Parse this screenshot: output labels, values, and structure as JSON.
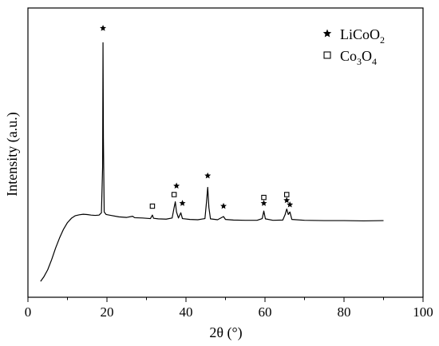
{
  "chart_data": {
    "type": "line",
    "xlabel": "2θ (°)",
    "ylabel": "Intensity (a.u.)",
    "xlim": [
      0,
      100
    ],
    "ylim": [
      0,
      100
    ],
    "x_ticks": [
      0,
      20,
      40,
      60,
      80,
      100
    ],
    "y_ticks_shown": false,
    "grid": false,
    "legend_position": "top-right",
    "legend": [
      {
        "marker": "star",
        "label_main": "LiCoO",
        "label_sub": "2",
        "label_tail": ""
      },
      {
        "marker": "square",
        "label_main": "Co",
        "label_sub": "3",
        "label_tail": "O",
        "label_sub2": "4"
      }
    ],
    "series": [
      {
        "points": [
          [
            3.2,
            5.5
          ],
          [
            4,
            7
          ],
          [
            5,
            9.5
          ],
          [
            6,
            13
          ],
          [
            7,
            17
          ],
          [
            8,
            20.5
          ],
          [
            9,
            23.5
          ],
          [
            10,
            25.8
          ],
          [
            11,
            27.3
          ],
          [
            12,
            28.2
          ],
          [
            13,
            28.5
          ],
          [
            14,
            28.7
          ],
          [
            15,
            28.6
          ],
          [
            16,
            28.4
          ],
          [
            17,
            28.3
          ],
          [
            18.0,
            28.4
          ],
          [
            18.6,
            29.2
          ],
          [
            18.9,
            45
          ],
          [
            19.0,
            88
          ],
          [
            19.1,
            55
          ],
          [
            19.3,
            29.5
          ],
          [
            19.8,
            28.6
          ],
          [
            21,
            28.3
          ],
          [
            23,
            27.8
          ],
          [
            25,
            27.6
          ],
          [
            26.5,
            28
          ],
          [
            27,
            27.5
          ],
          [
            29,
            27.4
          ],
          [
            31,
            27.2
          ],
          [
            31.5,
            28.4
          ],
          [
            31.8,
            27.3
          ],
          [
            33,
            27.1
          ],
          [
            35,
            27.0
          ],
          [
            36.5,
            27.4
          ],
          [
            37.0,
            31
          ],
          [
            37.3,
            33
          ],
          [
            37.6,
            29.5
          ],
          [
            38.1,
            27.4
          ],
          [
            38.7,
            29.2
          ],
          [
            39.1,
            27.2
          ],
          [
            41,
            26.9
          ],
          [
            43,
            26.8
          ],
          [
            44.8,
            27.2
          ],
          [
            45.2,
            33
          ],
          [
            45.5,
            38
          ],
          [
            45.8,
            31
          ],
          [
            46.2,
            27.1
          ],
          [
            48,
            26.8
          ],
          [
            49.5,
            27.9
          ],
          [
            50,
            26.9
          ],
          [
            52,
            26.7
          ],
          [
            55,
            26.6
          ],
          [
            58,
            26.6
          ],
          [
            59.3,
            27.2
          ],
          [
            59.7,
            29.8
          ],
          [
            60.1,
            27.1
          ],
          [
            62,
            26.6
          ],
          [
            64.5,
            26.7
          ],
          [
            65.1,
            28.6
          ],
          [
            65.5,
            30.5
          ],
          [
            65.9,
            28.6
          ],
          [
            66.3,
            29.5
          ],
          [
            66.8,
            26.9
          ],
          [
            70,
            26.6
          ],
          [
            75,
            26.5
          ],
          [
            80,
            26.5
          ],
          [
            85,
            26.4
          ],
          [
            90,
            26.5
          ]
        ]
      }
    ],
    "annotations": [
      {
        "marker": "star",
        "x": 19.0,
        "y": 93
      },
      {
        "marker": "square",
        "x": 31.5,
        "y": 31.5
      },
      {
        "marker": "square",
        "x": 37.0,
        "y": 35.5
      },
      {
        "marker": "star",
        "x": 37.6,
        "y": 38.5
      },
      {
        "marker": "star",
        "x": 39.1,
        "y": 32.5
      },
      {
        "marker": "star",
        "x": 45.5,
        "y": 42
      },
      {
        "marker": "star",
        "x": 49.5,
        "y": 31.5
      },
      {
        "marker": "square",
        "x": 59.7,
        "y": 34.5
      },
      {
        "marker": "star",
        "x": 59.7,
        "y": 32.5
      },
      {
        "marker": "square",
        "x": 65.5,
        "y": 35.5
      },
      {
        "marker": "star",
        "x": 65.5,
        "y": 33.5
      },
      {
        "marker": "star",
        "x": 66.3,
        "y": 32.0
      }
    ]
  }
}
